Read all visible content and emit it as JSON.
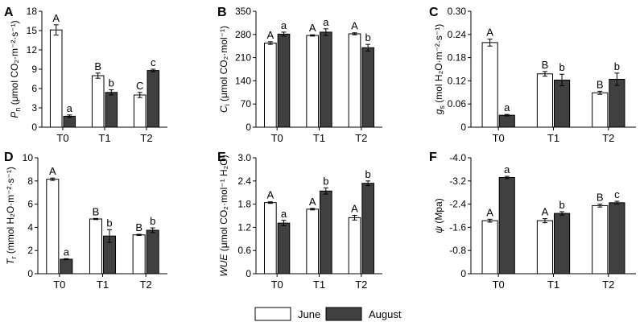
{
  "legend": {
    "june_label": "June",
    "august_label": "August"
  },
  "colors": {
    "june": "#ffffff",
    "august": "#404040",
    "stroke": "#000000"
  },
  "chart_data": [
    {
      "type": "bar",
      "panel": "A",
      "categories": [
        "T0",
        "T1",
        "T2"
      ],
      "ylabel": "P_n (μmol CO₂·m⁻²·s⁻¹)",
      "ylabel_main": "P",
      "ylabel_sub": "n",
      "ylabel_rest": " (μmol CO₂·m⁻²·s⁻¹)",
      "ylim": [
        0,
        18
      ],
      "yticks": [
        0,
        3,
        6,
        9,
        12,
        15,
        18
      ],
      "ytick_labels": [
        "0",
        "3",
        "6",
        "9",
        "12",
        "15",
        "18"
      ],
      "series": [
        {
          "name": "June",
          "values": [
            15.1,
            8.0,
            5.0
          ],
          "errors": [
            0.8,
            0.4,
            0.4
          ],
          "letters": [
            "A",
            "B",
            "C"
          ]
        },
        {
          "name": "August",
          "values": [
            1.7,
            5.4,
            8.8
          ],
          "errors": [
            0.2,
            0.4,
            0.2
          ],
          "letters": [
            "a",
            "b",
            "c"
          ]
        }
      ]
    },
    {
      "type": "bar",
      "panel": "B",
      "categories": [
        "T0",
        "T1",
        "T2"
      ],
      "ylabel": "C_i (μmol CO₂·mol⁻¹)",
      "ylabel_main": "C",
      "ylabel_sub": "i",
      "ylabel_rest": " (μmol CO₂·mol⁻¹)",
      "ylim": [
        0,
        350
      ],
      "yticks": [
        0,
        70,
        140,
        210,
        280,
        350
      ],
      "ytick_labels": [
        "0",
        "70",
        "140",
        "210",
        "280",
        "350"
      ],
      "series": [
        {
          "name": "June",
          "values": [
            254,
            277,
            282
          ],
          "errors": [
            4,
            2,
            3
          ],
          "letters": [
            "A",
            "A",
            "A"
          ]
        },
        {
          "name": "August",
          "values": [
            281,
            287,
            240
          ],
          "errors": [
            6,
            10,
            10
          ],
          "letters": [
            "a",
            "a",
            "b"
          ]
        }
      ]
    },
    {
      "type": "bar",
      "panel": "C",
      "categories": [
        "T0",
        "T1",
        "T2"
      ],
      "ylabel": "g_s (mol H₂O·m⁻²·s⁻¹)",
      "ylabel_main": "g",
      "ylabel_sub": "s",
      "ylabel_rest": " (mol H₂O·m⁻²·s⁻¹)",
      "ylim": [
        0,
        0.3
      ],
      "yticks": [
        0,
        0.06,
        0.12,
        0.18,
        0.24,
        0.3
      ],
      "ytick_labels": [
        "0",
        "0.06",
        "0.12",
        "0.18",
        "0.24",
        "0.30"
      ],
      "series": [
        {
          "name": "June",
          "values": [
            0.219,
            0.138,
            0.089
          ],
          "errors": [
            0.009,
            0.006,
            0.004
          ],
          "letters": [
            "A",
            "B",
            "B"
          ]
        },
        {
          "name": "August",
          "values": [
            0.031,
            0.122,
            0.124
          ],
          "errors": [
            0.002,
            0.015,
            0.016
          ],
          "letters": [
            "a",
            "b",
            "b"
          ]
        }
      ]
    },
    {
      "type": "bar",
      "panel": "D",
      "categories": [
        "T0",
        "T1",
        "T2"
      ],
      "ylabel": "T_r (mmol H₂O·m⁻²·s⁻¹)",
      "ylabel_main": "T",
      "ylabel_sub": "r",
      "ylabel_rest": " (mmol H₂O·m⁻²·s⁻¹)",
      "ylim": [
        0,
        10
      ],
      "yticks": [
        0,
        2,
        4,
        6,
        8,
        10
      ],
      "ytick_labels": [
        "0",
        "2",
        "4",
        "6",
        "8",
        "10"
      ],
      "series": [
        {
          "name": "June",
          "values": [
            8.15,
            4.72,
            3.35
          ],
          "errors": [
            0.1,
            0.05,
            0.05
          ],
          "letters": [
            "A",
            "B",
            "B"
          ]
        },
        {
          "name": "August",
          "values": [
            1.25,
            3.25,
            3.75
          ],
          "errors": [
            0.05,
            0.55,
            0.2
          ],
          "letters": [
            "a",
            "b",
            "b"
          ]
        }
      ]
    },
    {
      "type": "bar",
      "panel": "E",
      "categories": [
        "T0",
        "T1",
        "T2"
      ],
      "ylabel": "WUE (μmol CO₂·mol⁻¹ H₂O)",
      "ylabel_main": "WUE",
      "ylabel_sub": "",
      "ylabel_rest": " (μmol CO₂·mol⁻¹ H₂O)",
      "ylim": [
        0,
        3.0
      ],
      "yticks": [
        0,
        0.6,
        1.2,
        1.8,
        2.4,
        3.0
      ],
      "ytick_labels": [
        "0",
        "0.6",
        "1.2",
        "1.8",
        "2.4",
        "3.0"
      ],
      "series": [
        {
          "name": "June",
          "values": [
            1.84,
            1.67,
            1.45
          ],
          "errors": [
            0.02,
            0.02,
            0.06
          ],
          "letters": [
            "A",
            "A",
            "A"
          ]
        },
        {
          "name": "August",
          "values": [
            1.31,
            2.14,
            2.34
          ],
          "errors": [
            0.07,
            0.08,
            0.06
          ],
          "letters": [
            "a",
            "b",
            "b"
          ]
        }
      ]
    },
    {
      "type": "bar",
      "panel": "F",
      "categories": [
        "T0",
        "T1",
        "T2"
      ],
      "ylabel": "ψ (Mpa)",
      "ylabel_main": "ψ",
      "ylabel_sub": "",
      "ylabel_rest": " (Mpa)",
      "ylim": [
        0,
        -4.0
      ],
      "yticks": [
        0,
        -0.8,
        -1.6,
        -2.4,
        -3.2,
        -4.0
      ],
      "ytick_labels": [
        "0",
        "-0.8",
        "-1.6",
        "-2.4",
        "-3.2",
        "-4.0"
      ],
      "series": [
        {
          "name": "June",
          "values": [
            -1.83,
            -1.83,
            -2.35
          ],
          "errors": [
            0.05,
            0.07,
            0.05
          ],
          "letters": [
            "A",
            "A",
            "B"
          ]
        },
        {
          "name": "August",
          "values": [
            -3.32,
            -2.08,
            -2.45
          ],
          "errors": [
            0.04,
            0.06,
            0.05
          ],
          "letters": [
            "a",
            "b",
            "c"
          ]
        }
      ]
    }
  ]
}
